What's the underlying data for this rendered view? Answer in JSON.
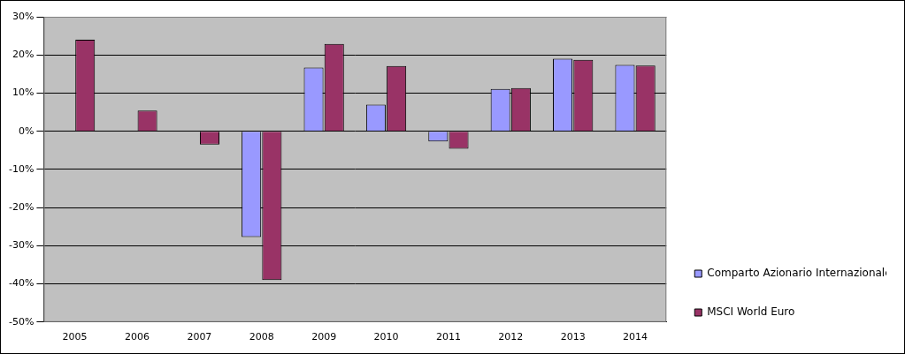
{
  "chart_data": {
    "type": "bar",
    "categories": [
      "2005",
      "2006",
      "2007",
      "2008",
      "2009",
      "2010",
      "2011",
      "2012",
      "2013",
      "2014"
    ],
    "series": [
      {
        "name": "Comparto Azionario Internazionale",
        "color": "#9999ff",
        "values": [
          null,
          null,
          null,
          -27.7,
          16.7,
          7.0,
          -2.7,
          11.1,
          19.0,
          17.4
        ]
      },
      {
        "name": "MSCI World Euro",
        "color": "#993366",
        "values": [
          24.0,
          5.4,
          -3.5,
          -39.0,
          22.9,
          17.1,
          -4.6,
          11.3,
          18.7,
          17.2
        ]
      }
    ],
    "ylim": [
      -50,
      30
    ],
    "yticks": [
      {
        "value": -50,
        "label": "-50%"
      },
      {
        "value": -40,
        "label": "-40%"
      },
      {
        "value": -30,
        "label": "-30%"
      },
      {
        "value": -20,
        "label": "-20%"
      },
      {
        "value": -10,
        "label": "-10%"
      },
      {
        "value": 0,
        "label": "0%"
      },
      {
        "value": 10,
        "label": "10%"
      },
      {
        "value": 20,
        "label": "20%"
      },
      {
        "value": 30,
        "label": "30%"
      }
    ],
    "grid": true,
    "legend": "right"
  }
}
